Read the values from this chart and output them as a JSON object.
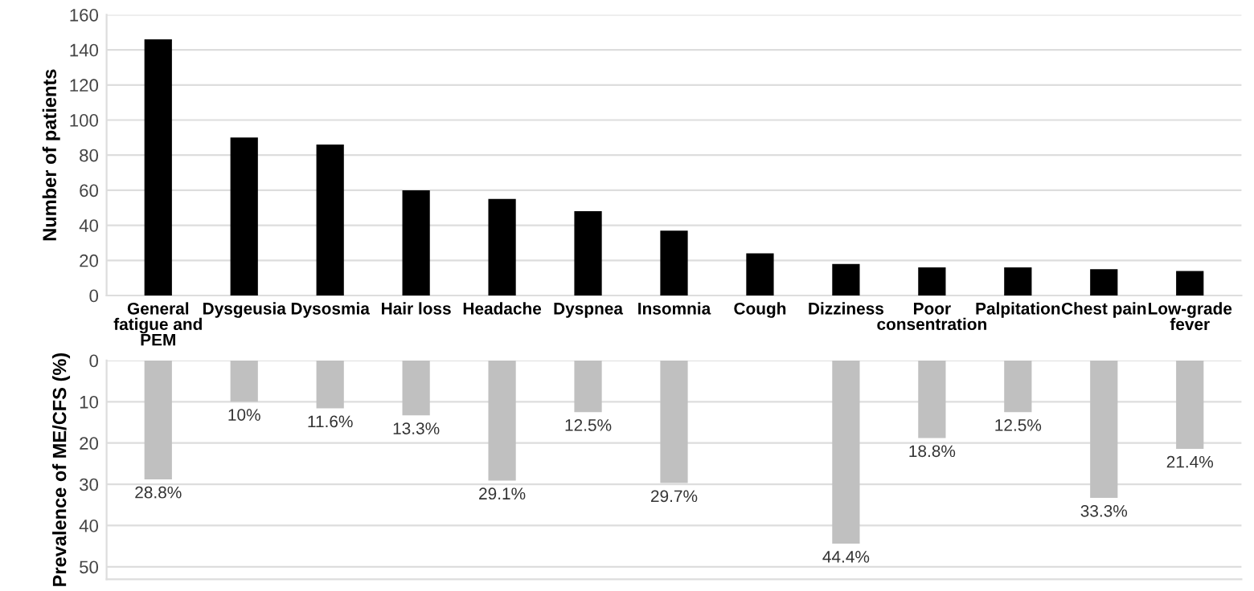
{
  "chart_data": [
    {
      "type": "bar",
      "ylabel": "Number of patients",
      "categories": [
        "General\nfatigue and\nPEM",
        "Dysgeusia",
        "Dysosmia",
        "Hair loss",
        "Headache",
        "Dyspnea",
        "Insomnia",
        "Cough",
        "Dizziness",
        "Poor\nconsentration",
        "Palpitation",
        "Chest pain",
        "Low-grade\nfever"
      ],
      "values": [
        146,
        90,
        86,
        60,
        55,
        48,
        37,
        24,
        18,
        16,
        16,
        15,
        14
      ],
      "color": "#000000",
      "ylim": [
        0,
        160
      ],
      "yticks": [
        0,
        20,
        40,
        60,
        80,
        100,
        120,
        140,
        160
      ],
      "grid": "y"
    },
    {
      "type": "bar",
      "ylabel": "Prevalence of ME/CFS (%)",
      "categories": [
        null,
        null,
        null,
        null,
        null,
        null,
        null,
        null,
        null,
        null,
        null,
        null,
        null
      ],
      "values": [
        28.8,
        10,
        11.6,
        13.3,
        29.1,
        12.5,
        29.7,
        null,
        44.4,
        18.8,
        12.5,
        33.3,
        21.4
      ],
      "value_labels": [
        "28.8%",
        "10%",
        "11.6%",
        "13.3%",
        "29.1%",
        "12.5%",
        "29.7%",
        null,
        "44.4%",
        "18.8%",
        "12.5%",
        "33.3%",
        "21.4%"
      ],
      "color": "#c0c0c0",
      "ylim": [
        53,
        0
      ],
      "yticks": [
        0,
        10,
        20,
        30,
        40,
        50
      ],
      "grid": "y"
    }
  ]
}
